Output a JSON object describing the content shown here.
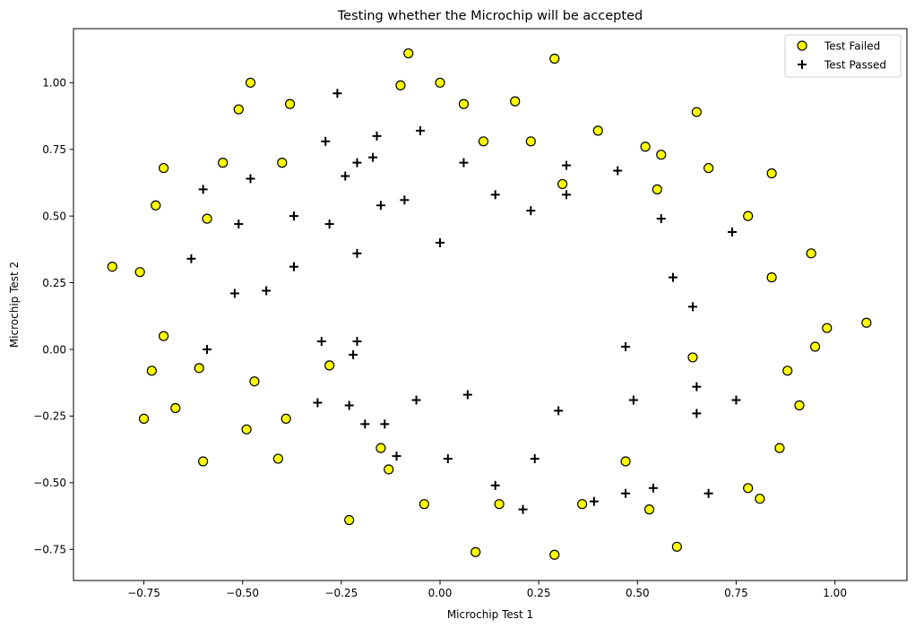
{
  "chart_data": {
    "type": "scatter",
    "title": "Testing whether the Microchip will be accepted",
    "xlabel": "Microchip Test 1",
    "ylabel": "Microchip Test 2",
    "xlim": [
      -0.92,
      1.18
    ],
    "ylim": [
      -0.86,
      1.2
    ],
    "grid": false,
    "legend_position": "upper right",
    "x_ticks": [
      -0.75,
      -0.5,
      -0.25,
      0.0,
      0.25,
      0.5,
      0.75,
      1.0
    ],
    "x_tick_labels": [
      "−0.75",
      "−0.50",
      "−0.25",
      "0.00",
      "0.25",
      "0.50",
      "0.75",
      "1.00"
    ],
    "y_ticks": [
      -0.75,
      -0.5,
      -0.25,
      0.0,
      0.25,
      0.5,
      0.75,
      1.0
    ],
    "y_tick_labels": [
      "−0.75",
      "−0.50",
      "−0.25",
      "0.00",
      "0.25",
      "0.50",
      "0.75",
      "1.00"
    ],
    "series": [
      {
        "name": "Test Failed",
        "marker": "circle",
        "color": "#ffff00",
        "edgecolor": "#000000",
        "points": [
          [
            -0.83,
            0.31
          ],
          [
            -0.76,
            0.29
          ],
          [
            -0.72,
            0.54
          ],
          [
            -0.7,
            0.68
          ],
          [
            -0.48,
            1.0
          ],
          [
            -0.51,
            0.9
          ],
          [
            -0.55,
            0.7
          ],
          [
            -0.59,
            0.49
          ],
          [
            -0.38,
            0.92
          ],
          [
            -0.4,
            0.7
          ],
          [
            -0.08,
            1.11
          ],
          [
            -0.1,
            0.99
          ],
          [
            0.0,
            1.0
          ],
          [
            0.06,
            0.92
          ],
          [
            0.19,
            0.93
          ],
          [
            0.11,
            0.78
          ],
          [
            0.23,
            0.78
          ],
          [
            0.29,
            1.09
          ],
          [
            0.4,
            0.82
          ],
          [
            0.31,
            0.62
          ],
          [
            0.52,
            0.76
          ],
          [
            0.65,
            0.89
          ],
          [
            0.56,
            0.73
          ],
          [
            0.68,
            0.68
          ],
          [
            0.55,
            0.6
          ],
          [
            0.78,
            0.5
          ],
          [
            0.84,
            0.66
          ],
          [
            0.94,
            0.36
          ],
          [
            0.84,
            0.27
          ],
          [
            1.08,
            0.1
          ],
          [
            0.98,
            0.08
          ],
          [
            0.95,
            0.01
          ],
          [
            -0.7,
            0.05
          ],
          [
            -0.73,
            -0.08
          ],
          [
            -0.61,
            -0.07
          ],
          [
            -0.75,
            -0.26
          ],
          [
            -0.67,
            -0.22
          ],
          [
            -0.47,
            -0.12
          ],
          [
            -0.39,
            -0.26
          ],
          [
            -0.49,
            -0.3
          ],
          [
            -0.6,
            -0.42
          ],
          [
            -0.41,
            -0.41
          ],
          [
            -0.28,
            -0.06
          ],
          [
            -0.15,
            -0.37
          ],
          [
            -0.13,
            -0.45
          ],
          [
            -0.23,
            -0.64
          ],
          [
            -0.04,
            -0.58
          ],
          [
            0.15,
            -0.58
          ],
          [
            0.09,
            -0.76
          ],
          [
            0.29,
            -0.77
          ],
          [
            0.36,
            -0.58
          ],
          [
            0.47,
            -0.42
          ],
          [
            0.53,
            -0.6
          ],
          [
            0.6,
            -0.74
          ],
          [
            0.64,
            -0.03
          ],
          [
            0.88,
            -0.08
          ],
          [
            0.91,
            -0.21
          ],
          [
            0.86,
            -0.37
          ],
          [
            0.81,
            -0.56
          ],
          [
            0.78,
            -0.52
          ]
        ]
      },
      {
        "name": "Test Passed",
        "marker": "plus",
        "color": "#000000",
        "points": [
          [
            -0.26,
            0.96
          ],
          [
            -0.29,
            0.78
          ],
          [
            -0.16,
            0.8
          ],
          [
            -0.05,
            0.82
          ],
          [
            -0.48,
            0.64
          ],
          [
            -0.6,
            0.6
          ],
          [
            -0.17,
            0.72
          ],
          [
            -0.21,
            0.7
          ],
          [
            -0.24,
            0.65
          ],
          [
            -0.09,
            0.56
          ],
          [
            -0.15,
            0.54
          ],
          [
            -0.37,
            0.5
          ],
          [
            -0.28,
            0.47
          ],
          [
            -0.51,
            0.47
          ],
          [
            -0.63,
            0.34
          ],
          [
            -0.52,
            0.21
          ],
          [
            -0.44,
            0.22
          ],
          [
            -0.37,
            0.31
          ],
          [
            -0.21,
            0.36
          ],
          [
            0.0,
            0.4
          ],
          [
            0.06,
            0.7
          ],
          [
            0.14,
            0.58
          ],
          [
            0.23,
            0.52
          ],
          [
            0.32,
            0.69
          ],
          [
            0.32,
            0.58
          ],
          [
            0.45,
            0.67
          ],
          [
            0.56,
            0.49
          ],
          [
            0.59,
            0.27
          ],
          [
            0.64,
            0.16
          ],
          [
            0.74,
            0.44
          ],
          [
            -0.21,
            0.03
          ],
          [
            -0.3,
            0.03
          ],
          [
            -0.59,
            0.0
          ],
          [
            -0.22,
            -0.02
          ],
          [
            -0.31,
            -0.2
          ],
          [
            -0.23,
            -0.21
          ],
          [
            -0.19,
            -0.28
          ],
          [
            -0.14,
            -0.28
          ],
          [
            -0.11,
            -0.4
          ],
          [
            -0.06,
            -0.19
          ],
          [
            0.07,
            -0.17
          ],
          [
            0.02,
            -0.41
          ],
          [
            0.14,
            -0.51
          ],
          [
            0.21,
            -0.6
          ],
          [
            0.3,
            -0.23
          ],
          [
            0.24,
            -0.41
          ],
          [
            0.39,
            -0.57
          ],
          [
            0.47,
            -0.54
          ],
          [
            0.54,
            -0.52
          ],
          [
            0.49,
            -0.19
          ],
          [
            0.47,
            0.01
          ],
          [
            0.65,
            -0.14
          ],
          [
            0.65,
            -0.24
          ],
          [
            0.75,
            -0.19
          ],
          [
            0.68,
            -0.54
          ]
        ]
      }
    ]
  }
}
